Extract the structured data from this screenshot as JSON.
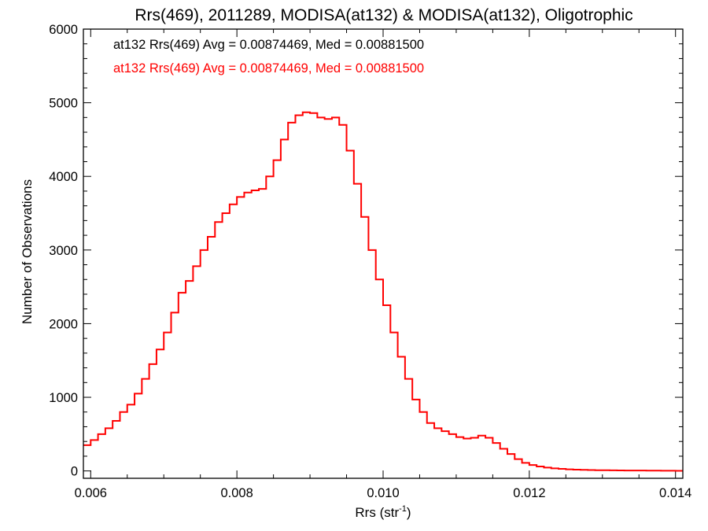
{
  "chart_data": {
    "type": "line",
    "title": "Rrs(469), 2011289, MODISA(at132) & MODISA(at132), Oligotrophic",
    "xlabel": "Rrs (str",
    "xlabel_sup": "-1",
    "xlabel_tail": ")",
    "ylabel": "Number of Observations",
    "xlim": [
      0.0059,
      0.0141
    ],
    "ylim": [
      -100,
      6000
    ],
    "xticks": [
      0.006,
      0.008,
      0.01,
      0.012,
      0.014
    ],
    "xtick_labels": [
      "0.006",
      "0.008",
      "0.010",
      "0.012",
      "0.014"
    ],
    "yticks": [
      0,
      1000,
      2000,
      3000,
      4000,
      5000,
      6000
    ],
    "ytick_labels": [
      "0",
      "1000",
      "2000",
      "3000",
      "4000",
      "5000",
      "6000"
    ],
    "grid": false,
    "legend": [
      {
        "text": "at132 Rrs(469) Avg = 0.00874469, Med = 0.00881500",
        "color": "#000000"
      },
      {
        "text": "at132 Rrs(469) Avg = 0.00874469, Med = 0.00881500",
        "color": "#ff0000"
      }
    ],
    "series": [
      {
        "color": "#ff0000",
        "step": true,
        "x": [
          0.0059,
          0.006,
          0.0061,
          0.0062,
          0.0063,
          0.0064,
          0.0065,
          0.0066,
          0.0067,
          0.0068,
          0.0069,
          0.007,
          0.0071,
          0.0072,
          0.0073,
          0.0074,
          0.0075,
          0.0076,
          0.0077,
          0.0078,
          0.0079,
          0.008,
          0.0081,
          0.0082,
          0.0083,
          0.0084,
          0.0085,
          0.0086,
          0.0087,
          0.0088,
          0.0089,
          0.009,
          0.0091,
          0.0092,
          0.0093,
          0.0094,
          0.0095,
          0.0096,
          0.0097,
          0.0098,
          0.0099,
          0.01,
          0.0101,
          0.0102,
          0.0103,
          0.0104,
          0.0105,
          0.0106,
          0.0107,
          0.0108,
          0.0109,
          0.011,
          0.0111,
          0.0112,
          0.0113,
          0.0114,
          0.0115,
          0.0116,
          0.0117,
          0.0118,
          0.0119,
          0.012,
          0.0121,
          0.0122,
          0.0123,
          0.0124,
          0.0125,
          0.0126,
          0.0127,
          0.0128,
          0.0129,
          0.013,
          0.0131,
          0.0132,
          0.0133,
          0.0134,
          0.0135,
          0.0136,
          0.0137,
          0.0138,
          0.0139,
          0.014,
          0.0141
        ],
        "y": [
          350,
          420,
          500,
          580,
          680,
          800,
          900,
          1050,
          1250,
          1450,
          1650,
          1880,
          2150,
          2420,
          2580,
          2780,
          3000,
          3180,
          3380,
          3500,
          3620,
          3720,
          3780,
          3810,
          3830,
          4000,
          4220,
          4500,
          4730,
          4830,
          4870,
          4860,
          4800,
          4780,
          4800,
          4700,
          4350,
          3900,
          3450,
          3000,
          2600,
          2250,
          1880,
          1550,
          1250,
          970,
          800,
          650,
          580,
          540,
          500,
          460,
          440,
          450,
          480,
          450,
          380,
          300,
          230,
          160,
          110,
          80,
          60,
          45,
          35,
          28,
          22,
          18,
          15,
          12,
          10,
          9,
          8,
          7,
          6,
          5,
          5,
          4,
          4,
          3,
          3,
          2,
          2
        ]
      }
    ]
  }
}
